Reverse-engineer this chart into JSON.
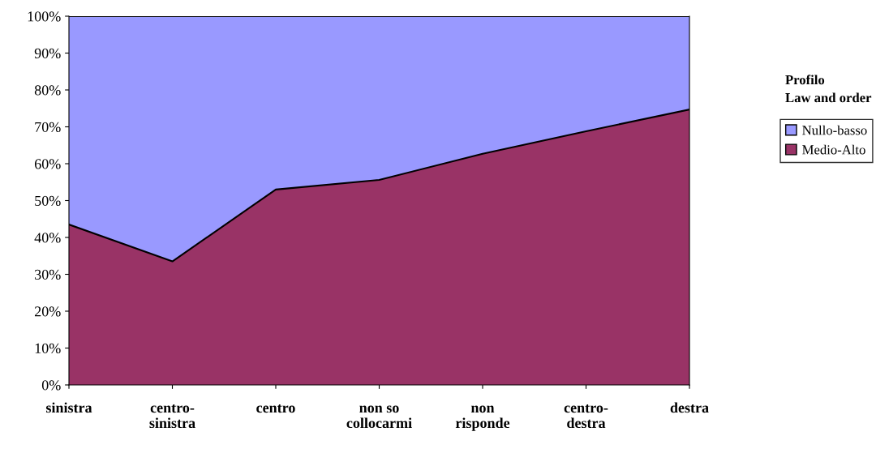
{
  "chart_data": {
    "type": "area",
    "stacked": true,
    "legend_title": "Profilo\nLaw and order",
    "legend": "right",
    "grid": false,
    "categories": [
      "sinistra",
      "centro-\nsinistra",
      "centro",
      "non so\ncollocarmi",
      "non\nrisponde",
      "centro-\ndestra",
      "destra"
    ],
    "series": [
      {
        "name": "Medio-Alto",
        "color": "#993366",
        "values": [
          43.5,
          33.5,
          53,
          55.6,
          62.7,
          68.8,
          74.7
        ]
      },
      {
        "name": "Nullo-basso",
        "color": "#9999ff",
        "values": [
          56.5,
          66.5,
          47,
          44.4,
          37.3,
          31.2,
          25.3
        ]
      }
    ],
    "ylim": [
      0,
      100
    ],
    "yticks": [
      {
        "value": 0,
        "label": "0%"
      },
      {
        "value": 10,
        "label": "10%"
      },
      {
        "value": 20,
        "label": "20%"
      },
      {
        "value": 30,
        "label": "30%"
      },
      {
        "value": 40,
        "label": "40%"
      },
      {
        "value": 50,
        "label": "50%"
      },
      {
        "value": 60,
        "label": "60%"
      },
      {
        "value": 70,
        "label": "70%"
      },
      {
        "value": 80,
        "label": "80%"
      },
      {
        "value": 90,
        "label": "90%"
      },
      {
        "value": 100,
        "label": "100%"
      }
    ]
  }
}
